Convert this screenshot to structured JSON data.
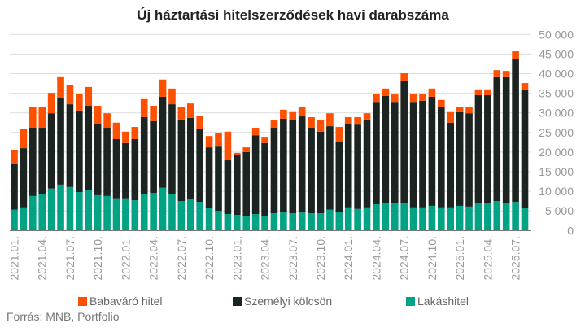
{
  "chart_data": {
    "type": "bar",
    "stacked": true,
    "title": "Új háztartási hitelszerződések havi darabszáma",
    "xlabel": "",
    "ylabel": "",
    "ylim": [
      0,
      50000
    ],
    "yticks": [
      0,
      5000,
      10000,
      15000,
      20000,
      25000,
      30000,
      35000,
      40000,
      45000,
      50000
    ],
    "ytick_labels": [
      "0",
      "5 000",
      "10 000",
      "15 000",
      "20 000",
      "25 000",
      "30 000",
      "35 000",
      "40 000",
      "45 000",
      "50 000"
    ],
    "grid": true,
    "legend_position": "bottom",
    "start_month": "2021.01",
    "x_tick_labels": [
      "2021.01.",
      "2021.04.",
      "2021.07.",
      "2021.10.",
      "2022.01.",
      "2022.04.",
      "2022.07.",
      "2022.10.",
      "2023.01.",
      "2023.04.",
      "2023.07.",
      "2023.10.",
      "2024.01.",
      "2024.04.",
      "2024.07.",
      "2024.10.",
      "2025.01.",
      "2025.04.",
      "2025.07."
    ],
    "series": [
      {
        "name": "Lakáshitel",
        "color": "#00a383",
        "values": [
          5300,
          5900,
          8800,
          9200,
          10700,
          11700,
          11100,
          9800,
          10400,
          9000,
          8800,
          8200,
          8200,
          7700,
          9400,
          9600,
          10900,
          9400,
          7500,
          8000,
          7300,
          5700,
          5000,
          4200,
          4000,
          3600,
          4200,
          3800,
          4400,
          4600,
          4400,
          4600,
          4400,
          4400,
          5300,
          4800,
          5900,
          5500,
          5900,
          6700,
          6900,
          6900,
          7100,
          5900,
          5900,
          6300,
          5900,
          5900,
          6300,
          6100,
          6900,
          6900,
          7500,
          7100,
          7300,
          5700
        ]
      },
      {
        "name": "Személyi kölcsön",
        "color": "#1c2421",
        "values": [
          11600,
          15100,
          17400,
          17000,
          19200,
          22000,
          21100,
          20800,
          21400,
          18200,
          17400,
          15100,
          14100,
          15600,
          19500,
          18300,
          23200,
          22800,
          20800,
          20700,
          18700,
          15500,
          16400,
          13700,
          15200,
          16400,
          20100,
          18500,
          21800,
          23900,
          23700,
          24500,
          21800,
          20800,
          21300,
          17700,
          21300,
          21500,
          22400,
          26100,
          27400,
          25900,
          31100,
          26900,
          27200,
          27800,
          25500,
          21600,
          23900,
          23800,
          27600,
          27600,
          31600,
          32000,
          36500,
          30300
        ]
      },
      {
        "name": "Babaváró hitel",
        "color": "#ff5000",
        "values": [
          3700,
          4800,
          5400,
          5200,
          5200,
          5400,
          5000,
          4300,
          4800,
          4600,
          3700,
          4200,
          2900,
          3100,
          4600,
          3900,
          4400,
          4000,
          3300,
          3700,
          3300,
          2900,
          3400,
          7300,
          600,
          1200,
          1900,
          1600,
          1900,
          2300,
          2100,
          2500,
          2700,
          2900,
          3300,
          3900,
          1700,
          1900,
          1600,
          2100,
          1900,
          1900,
          1900,
          2100,
          1800,
          2100,
          1900,
          2700,
          1400,
          1700,
          1500,
          1500,
          1800,
          1600,
          1900,
          1600
        ]
      }
    ],
    "legend": [
      "Babaváró hitel",
      "Személyi kölcsön",
      "Lakáshitel"
    ],
    "source": "Forrás: MNB, Portfolio"
  }
}
